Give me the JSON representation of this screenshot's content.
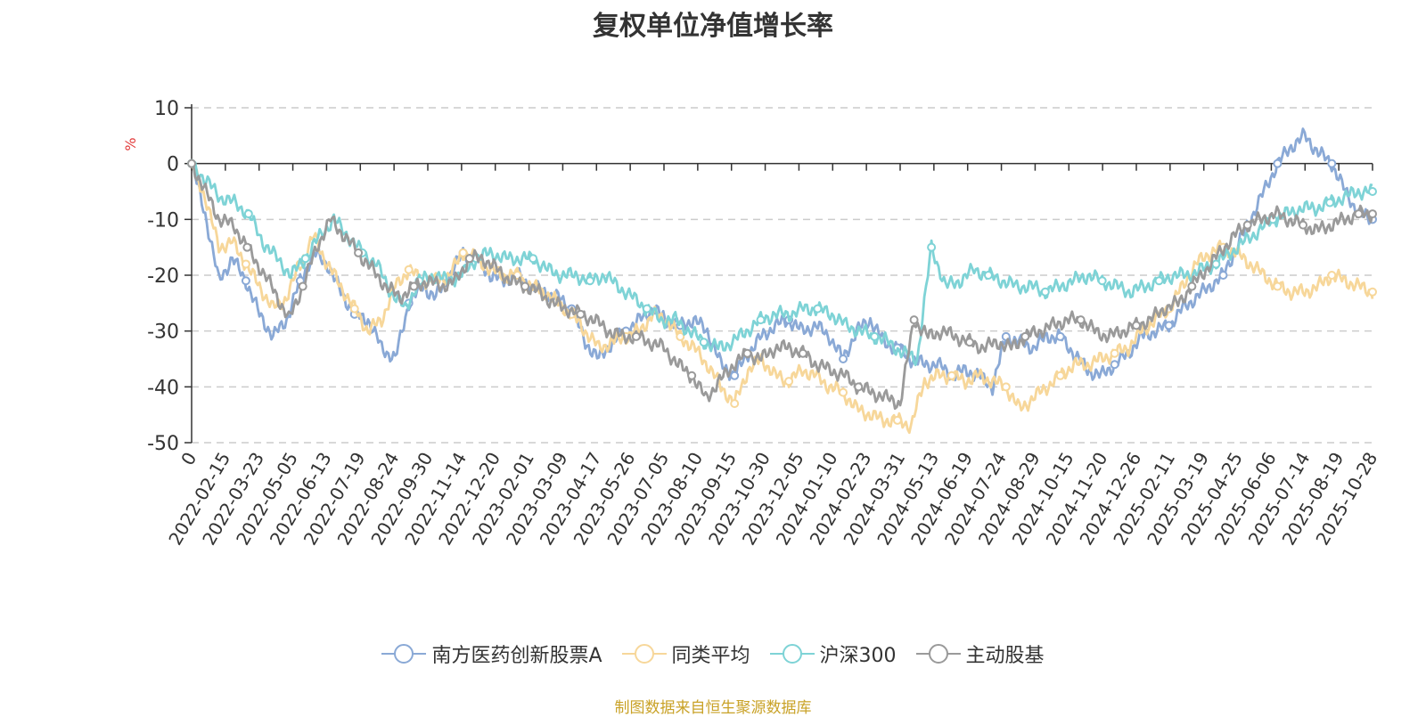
{
  "chart_data": {
    "type": "line",
    "title": "复权单位净值增长率",
    "ylabel": "%",
    "ylim": [
      -50,
      10
    ],
    "yticks": [
      10,
      0,
      -10,
      -20,
      -30,
      -40,
      -50
    ],
    "grid": true,
    "legend_position": "bottom",
    "x_tick_labels": [
      "0",
      "2022-02-15",
      "2022-03-23",
      "2022-05-05",
      "2022-06-13",
      "2022-07-19",
      "2022-08-24",
      "2022-09-30",
      "2022-11-14",
      "2022-12-20",
      "2023-02-01",
      "2023-03-09",
      "2023-04-17",
      "2023-05-26",
      "2023-07-05",
      "2023-08-10",
      "2023-09-15",
      "2023-10-30",
      "2023-12-05",
      "2024-01-10",
      "2024-02-23",
      "2024-03-31",
      "2024-05-13",
      "2024-06-19",
      "2024-07-24",
      "2024-08-29",
      "2024-10-15",
      "2024-11-20",
      "2024-12-26",
      "2025-02-11",
      "2025-03-19",
      "2025-04-25",
      "2025-06-06",
      "2025-07-14",
      "2025-08-19",
      "2025-10-28"
    ],
    "series": [
      {
        "name": "南方医药创新股票A",
        "color": "#8aa9d6",
        "values": [
          0,
          -9,
          -21,
          -17,
          -21,
          -27,
          -31,
          -28,
          -21,
          -16,
          -18,
          -23,
          -27,
          -28,
          -33,
          -35,
          -25,
          -22,
          -24,
          -20,
          -16,
          -17,
          -20,
          -21,
          -20,
          -22,
          -23,
          -24,
          -26,
          -32,
          -35,
          -32,
          -30,
          -28,
          -26,
          -28,
          -29,
          -28,
          -30,
          -36,
          -38,
          -34,
          -31,
          -29,
          -28,
          -30,
          -29,
          -31,
          -35,
          -30,
          -28,
          -32,
          -33,
          -35,
          -36,
          -36,
          -38,
          -37,
          -38,
          -40,
          -31,
          -32,
          -33,
          -31,
          -31,
          -34,
          -37,
          -38,
          -36,
          -34,
          -31,
          -30,
          -29,
          -26,
          -24,
          -22,
          -20,
          -15,
          -10,
          -5,
          0,
          3,
          5,
          2,
          0,
          -5,
          -9,
          -10
        ]
      },
      {
        "name": "同类平均",
        "color": "#f7d79a",
        "values": [
          0,
          -6,
          -15,
          -14,
          -18,
          -22,
          -26,
          -24,
          -18,
          -13,
          -18,
          -22,
          -26,
          -30,
          -28,
          -22,
          -19,
          -21,
          -21,
          -20,
          -16,
          -17,
          -19,
          -20,
          -20,
          -22,
          -23,
          -25,
          -27,
          -30,
          -33,
          -32,
          -31,
          -30,
          -27,
          -28,
          -31,
          -33,
          -36,
          -40,
          -43,
          -37,
          -35,
          -38,
          -39,
          -37,
          -38,
          -40,
          -41,
          -44,
          -45,
          -46,
          -46,
          -47,
          -39,
          -38,
          -38,
          -39,
          -38,
          -39,
          -40,
          -44,
          -42,
          -40,
          -38,
          -36,
          -36,
          -35,
          -34,
          -33,
          -30,
          -28,
          -26,
          -22,
          -18,
          -16,
          -15,
          -16,
          -18,
          -20,
          -22,
          -23,
          -23,
          -22,
          -20,
          -21,
          -22,
          -23
        ]
      },
      {
        "name": "沪深300",
        "color": "#7ed3d6",
        "values": [
          0,
          -3,
          -6,
          -7,
          -9,
          -14,
          -17,
          -20,
          -17,
          -13,
          -10,
          -13,
          -16,
          -18,
          -23,
          -26,
          -21,
          -20,
          -21,
          -20,
          -17,
          -16,
          -17,
          -17,
          -17,
          -19,
          -20,
          -20,
          -21,
          -20,
          -22,
          -24,
          -26,
          -28,
          -28,
          -30,
          -32,
          -33,
          -32,
          -30,
          -28,
          -27,
          -27,
          -26,
          -26,
          -27,
          -29,
          -30,
          -31,
          -32,
          -34,
          -35,
          -15,
          -22,
          -21,
          -19,
          -20,
          -21,
          -22,
          -22,
          -23,
          -22,
          -21,
          -20,
          -21,
          -22,
          -23,
          -22,
          -21,
          -20,
          -20,
          -19,
          -18,
          -16,
          -14,
          -12,
          -10,
          -9,
          -8,
          -8,
          -7,
          -6,
          -5,
          -5
        ]
      },
      {
        "name": "主动股基",
        "color": "#9a9a9a",
        "values": [
          0,
          -5,
          -10,
          -11,
          -15,
          -19,
          -23,
          -28,
          -22,
          -15,
          -10,
          -13,
          -16,
          -19,
          -22,
          -24,
          -22,
          -21,
          -22,
          -21,
          -17,
          -17,
          -19,
          -21,
          -22,
          -23,
          -25,
          -26,
          -27,
          -28,
          -30,
          -31,
          -31,
          -32,
          -33,
          -36,
          -38,
          -42,
          -39,
          -36,
          -34,
          -35,
          -33,
          -33,
          -34,
          -36,
          -37,
          -38,
          -40,
          -41,
          -42,
          -43,
          -28,
          -31,
          -30,
          -31,
          -32,
          -33,
          -32,
          -33,
          -31,
          -30,
          -29,
          -28,
          -28,
          -30,
          -31,
          -30,
          -29,
          -28,
          -26,
          -25,
          -22,
          -19,
          -16,
          -13,
          -11,
          -10,
          -9,
          -10,
          -11,
          -12,
          -11,
          -10,
          -9,
          -9
        ]
      }
    ],
    "source": "制图数据来自恒生聚源数据库"
  }
}
